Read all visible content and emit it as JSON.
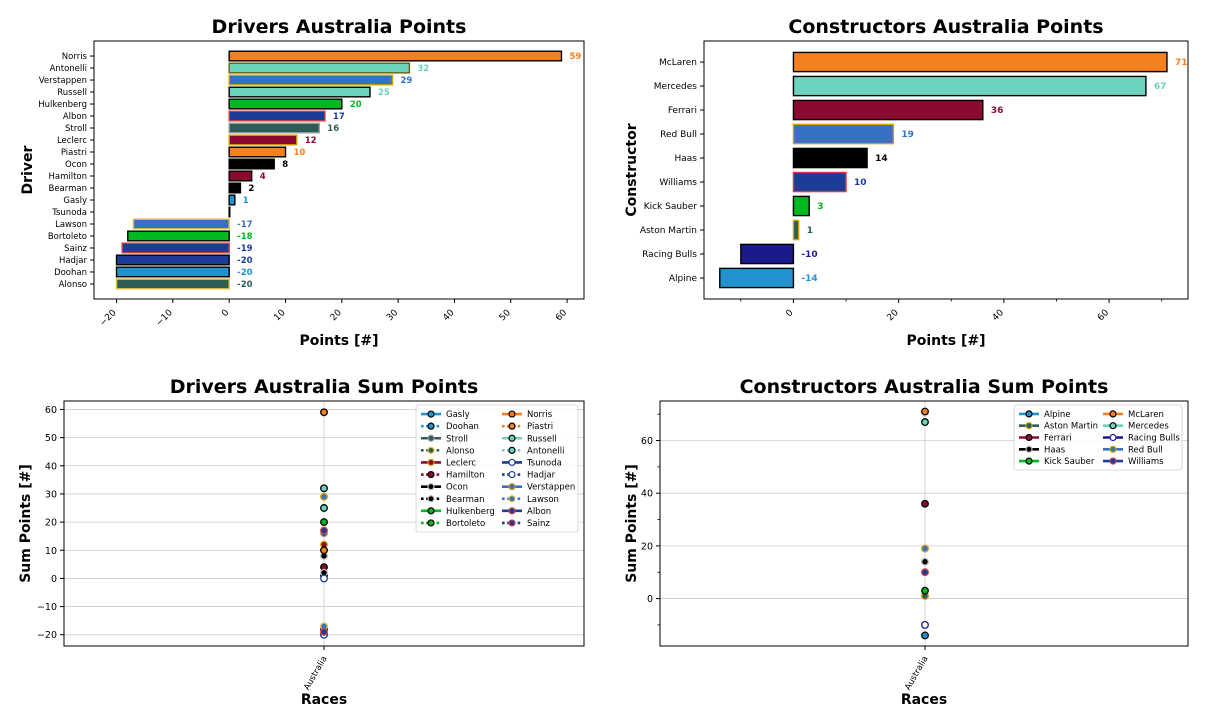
{
  "chart_data": [
    {
      "id": "drivers-points",
      "type": "bar",
      "orientation": "horizontal",
      "title": "Drivers Australia Points",
      "xlabel": "Points [#]",
      "ylabel": "Driver",
      "xlim": [
        -24,
        63
      ],
      "xticks": [
        -20,
        -10,
        0,
        10,
        20,
        30,
        40,
        50,
        60
      ],
      "grid": false,
      "categories": [
        "Norris",
        "Antonelli",
        "Verstappen",
        "Russell",
        "Hulkenberg",
        "Albon",
        "Stroll",
        "Leclerc",
        "Piastri",
        "Ocon",
        "Hamilton",
        "Bearman",
        "Gasly",
        "Tsunoda",
        "Lawson",
        "Bortoleto",
        "Sainz",
        "Hadjar",
        "Doohan",
        "Alonso"
      ],
      "values": [
        59,
        32,
        29,
        25,
        20,
        17,
        16,
        12,
        10,
        8,
        4,
        2,
        1,
        0,
        -17,
        -18,
        -19,
        -20,
        -20,
        -20
      ],
      "labels": [
        "59",
        "32",
        "29",
        "25",
        "20",
        "17",
        "16",
        "12",
        "10",
        "8",
        "4",
        "2",
        "1",
        "",
        "-17",
        "-18",
        "-19",
        "-20",
        "-20",
        "-20"
      ],
      "fill": [
        "#F58020",
        "#6CD3BF",
        "#3671C6",
        "#6CD3BF",
        "#00B920",
        "#1B3D97",
        "#2D5D57",
        "#8B0A2F",
        "#F58020",
        "#000000",
        "#8B0A2F",
        "#000000",
        "#2293D1",
        "#1B3D97",
        "#3671C6",
        "#00B920",
        "#1B3D97",
        "#1B3D97",
        "#2293D1",
        "#2D5D57"
      ],
      "edge": [
        "#000000",
        "#6E5E0A",
        "#D4A100",
        "#000000",
        "#000000",
        "#D34040",
        "#A0A0A0",
        "#D4A100",
        "#000000",
        "#000000",
        "#000000",
        "#000000",
        "#000000",
        "#000000",
        "#E0C040",
        "#000000",
        "#D34040",
        "#000000",
        "#000000",
        "#E0C040"
      ],
      "labelColor": [
        "#F58020",
        "#6CD3BF",
        "#3671C6",
        "#6CD3BF",
        "#00B920",
        "#1B3D97",
        "#2D5D57",
        "#8B0A2F",
        "#F58020",
        "#000000",
        "#8B0A2F",
        "#000000",
        "#2293D1",
        "#1B3D97",
        "#3671C6",
        "#00B920",
        "#1B3D97",
        "#1B3D97",
        "#2293D1",
        "#2D5D57"
      ]
    },
    {
      "id": "constructors-points",
      "type": "bar",
      "orientation": "horizontal",
      "title": "Constructors Australia Points",
      "xlabel": "Points [#]",
      "ylabel": "Constructor",
      "xlim": [
        -17,
        75
      ],
      "xticks": [
        0,
        20,
        40,
        60
      ],
      "minor_ticks": [
        -10,
        10,
        30,
        50,
        70
      ],
      "grid": false,
      "categories": [
        "McLaren",
        "Mercedes",
        "Ferrari",
        "Red Bull",
        "Haas",
        "Williams",
        "Kick Sauber",
        "Aston Martin",
        "Racing Bulls",
        "Alpine"
      ],
      "values": [
        71,
        67,
        36,
        19,
        14,
        10,
        3,
        1,
        -10,
        -14
      ],
      "labels": [
        "71",
        "67",
        "36",
        "19",
        "14",
        "10",
        "3",
        "1",
        "-10",
        "-14"
      ],
      "fill": [
        "#F58020",
        "#6CD3BF",
        "#8B0A2F",
        "#3671C6",
        "#000000",
        "#1B3D97",
        "#00B920",
        "#2D5D57",
        "#1A1A8C",
        "#2293D1"
      ],
      "edge": [
        "#000000",
        "#000000",
        "#000000",
        "#D4A100",
        "#000000",
        "#D34040",
        "#000000",
        "#D4A100",
        "#000000",
        "#000000"
      ],
      "labelColor": [
        "#F58020",
        "#6CD3BF",
        "#8B0A2F",
        "#3671C6",
        "#000000",
        "#1B3D97",
        "#00B920",
        "#2D5D57",
        "#1A1A8C",
        "#2293D1"
      ]
    },
    {
      "id": "drivers-sum",
      "type": "scatter",
      "title": "Drivers Australia Sum Points",
      "xlabel": "Races",
      "ylabel": "Sum Points [#]",
      "x": [
        "Australia"
      ],
      "ylim": [
        -24,
        63
      ],
      "yticks": [
        -20,
        -10,
        0,
        10,
        20,
        30,
        40,
        50,
        60
      ],
      "grid": true,
      "legend_position": "top-right",
      "series": [
        {
          "name": "Gasly",
          "values": [
            1
          ],
          "color": "#2293D1",
          "edge": "#000000",
          "dashed": false
        },
        {
          "name": "Doohan",
          "values": [
            -20
          ],
          "color": "#2293D1",
          "edge": "#000000",
          "dashed": true
        },
        {
          "name": "Stroll",
          "values": [
            16
          ],
          "color": "#2D5D57",
          "edge": "#A0A0A0",
          "dashed": false
        },
        {
          "name": "Alonso",
          "values": [
            -20
          ],
          "color": "#2D5D57",
          "edge": "#E0C040",
          "dashed": true
        },
        {
          "name": "Leclerc",
          "values": [
            12
          ],
          "color": "#8B0A2F",
          "edge": "#D4A100",
          "dashed": false
        },
        {
          "name": "Hamilton",
          "values": [
            4
          ],
          "color": "#8B0A2F",
          "edge": "#000000",
          "dashed": true
        },
        {
          "name": "Ocon",
          "values": [
            8
          ],
          "color": "#000000",
          "edge": "#BBBBBB",
          "dashed": false
        },
        {
          "name": "Bearman",
          "values": [
            2
          ],
          "color": "#000000",
          "edge": "#BBBBBB",
          "dashed": true
        },
        {
          "name": "Hulkenberg",
          "values": [
            20
          ],
          "color": "#00B920",
          "edge": "#000000",
          "dashed": false
        },
        {
          "name": "Bortoleto",
          "values": [
            -18
          ],
          "color": "#00B920",
          "edge": "#000000",
          "dashed": true
        },
        {
          "name": "Norris",
          "values": [
            59
          ],
          "color": "#F58020",
          "edge": "#000000",
          "dashed": false
        },
        {
          "name": "Piastri",
          "values": [
            10
          ],
          "color": "#F58020",
          "edge": "#000000",
          "dashed": true
        },
        {
          "name": "Russell",
          "values": [
            25
          ],
          "color": "#6CD3BF",
          "edge": "#000000",
          "dashed": false
        },
        {
          "name": "Antonelli",
          "values": [
            32
          ],
          "color": "#6CD3BF",
          "edge": "#000000",
          "dashed": true
        },
        {
          "name": "Tsunoda",
          "values": [
            0
          ],
          "color": "#FFFFFF",
          "edge": "#1B3D97",
          "dashed": false
        },
        {
          "name": "Hadjar",
          "values": [
            -20
          ],
          "color": "#FFFFFF",
          "edge": "#1B3D97",
          "dashed": true
        },
        {
          "name": "Verstappen",
          "values": [
            29
          ],
          "color": "#3671C6",
          "edge": "#D4A100",
          "dashed": false
        },
        {
          "name": "Lawson",
          "values": [
            -17
          ],
          "color": "#3671C6",
          "edge": "#E0C040",
          "dashed": true
        },
        {
          "name": "Albon",
          "values": [
            17
          ],
          "color": "#1B3D97",
          "edge": "#D34040",
          "dashed": false
        },
        {
          "name": "Sainz",
          "values": [
            -19
          ],
          "color": "#1B3D97",
          "edge": "#D34040",
          "dashed": true
        }
      ]
    },
    {
      "id": "constructors-sum",
      "type": "scatter",
      "title": "Constructors Australia Sum Points",
      "xlabel": "Races",
      "ylabel": "Sum Points [#]",
      "x": [
        "Australia"
      ],
      "ylim": [
        -18,
        75
      ],
      "yticks": [
        0,
        20,
        40,
        60
      ],
      "minor_ticks": [
        -10,
        10,
        30,
        50,
        70
      ],
      "grid": true,
      "legend_position": "top-right",
      "series": [
        {
          "name": "Alpine",
          "values": [
            -14
          ],
          "color": "#2293D1",
          "edge": "#000000"
        },
        {
          "name": "Aston Martin",
          "values": [
            1
          ],
          "color": "#2D5D57",
          "edge": "#D4A100"
        },
        {
          "name": "Ferrari",
          "values": [
            36
          ],
          "color": "#8B0A2F",
          "edge": "#000000"
        },
        {
          "name": "Haas",
          "values": [
            14
          ],
          "color": "#000000",
          "edge": "#BBBBBB"
        },
        {
          "name": "Kick Sauber",
          "values": [
            3
          ],
          "color": "#00B920",
          "edge": "#000000"
        },
        {
          "name": "McLaren",
          "values": [
            71
          ],
          "color": "#F58020",
          "edge": "#000000"
        },
        {
          "name": "Mercedes",
          "values": [
            67
          ],
          "color": "#6CD3BF",
          "edge": "#000000"
        },
        {
          "name": "Racing Bulls",
          "values": [
            -10
          ],
          "color": "#FFFFFF",
          "edge": "#1A1A8C"
        },
        {
          "name": "Red Bull",
          "values": [
            19
          ],
          "color": "#3671C6",
          "edge": "#D4A100"
        },
        {
          "name": "Williams",
          "values": [
            10
          ],
          "color": "#1B3D97",
          "edge": "#D34040"
        }
      ]
    }
  ]
}
